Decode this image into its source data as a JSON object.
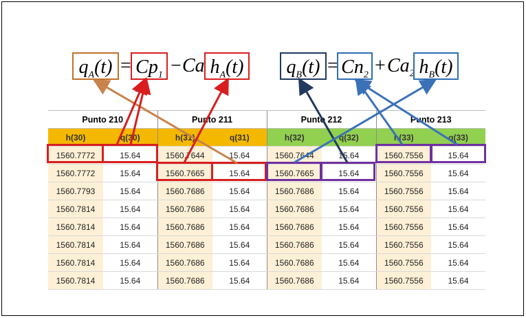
{
  "equation_a": {
    "q_sym": "q",
    "q_sub": "A",
    "q_arg": "(t)",
    "eq_sign": "=",
    "cp_sym": "Cp",
    "cp_sub": "1",
    "minus": "−",
    "ca_sym": "Ca",
    "h_sym": "h",
    "h_sub": "A",
    "h_arg": "(t)"
  },
  "equation_b": {
    "q_sym": "q",
    "q_sub": "B",
    "q_arg": "(t)",
    "eq_sign": "=",
    "cn_sym": "Cn",
    "cn_sub": "2",
    "plus": "+",
    "ca_sym": "Ca",
    "ca_sub": "2",
    "h_sym": "h",
    "h_sub": "B",
    "h_arg": "(t)"
  },
  "table": {
    "groups": [
      "Punto 210",
      "Punto 211",
      "Punto 212",
      "Punto 213"
    ],
    "headers": [
      "h(30)",
      "q(30)",
      "h(31)",
      "q(31)",
      "h(32)",
      "q(32)",
      "h(33)",
      "q(33)"
    ],
    "header_colors": [
      "#f5b800",
      "#f5b800",
      "#f5b800",
      "#f5b800",
      "#92d050",
      "#92d050",
      "#92d050",
      "#92d050"
    ],
    "rows": [
      [
        "1560.7772",
        "15.64",
        "1560.7644",
        "15.64",
        "1560.7644",
        "15.64",
        "1560.7556",
        "15.64"
      ],
      [
        "1560.7772",
        "15.64",
        "1560.7665",
        "15.64",
        "1560.7665",
        "15.64",
        "1560.7556",
        "15.64"
      ],
      [
        "1560.7793",
        "15.64",
        "1560.7686",
        "15.64",
        "1560.7686",
        "15.64",
        "1560.7556",
        "15.64"
      ],
      [
        "1560.7814",
        "15.64",
        "1560.7686",
        "15.64",
        "1560.7686",
        "15.64",
        "1560.7556",
        "15.64"
      ],
      [
        "1560.7814",
        "15.64",
        "1560.7686",
        "15.64",
        "1560.7686",
        "15.64",
        "1560.7556",
        "15.64"
      ],
      [
        "1560.7814",
        "15.64",
        "1560.7686",
        "15.64",
        "1560.7686",
        "15.64",
        "1560.7556",
        "15.64"
      ],
      [
        "1560.7814",
        "15.64",
        "1560.7686",
        "15.64",
        "1560.7686",
        "15.64",
        "1560.7556",
        "15.64"
      ],
      [
        "1560.7814",
        "15.64",
        "1560.7686",
        "15.64",
        "1560.7686",
        "15.64",
        "1560.7556",
        "15.64"
      ]
    ]
  },
  "colors": {
    "box_q_a": "#c0712a",
    "box_red": "#d81e1e",
    "box_navy": "#1f3a5f",
    "box_blue": "#2e6db4",
    "box_purple": "#7030a0",
    "arrow_orange": "#c9824a",
    "arrow_red": "#d81e1e",
    "arrow_navy": "#223a5e",
    "arrow_blue": "#3a72b8"
  }
}
